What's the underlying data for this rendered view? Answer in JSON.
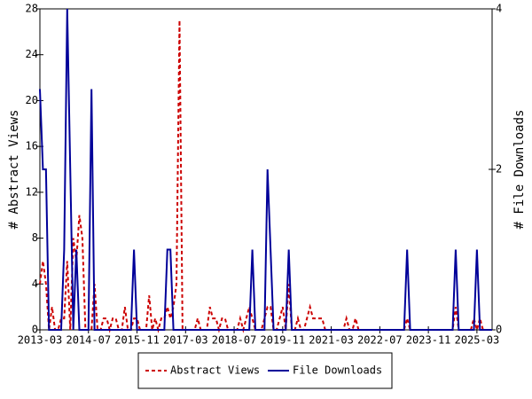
{
  "chart_data": {
    "type": "line",
    "y_label": "# Abstract Views",
    "y2_label": "# File Downloads",
    "x": [
      "2013-03",
      "2013-04",
      "2013-05",
      "2013-06",
      "2013-07",
      "2013-08",
      "2013-09",
      "2013-10",
      "2013-11",
      "2013-12",
      "2014-01",
      "2014-02",
      "2014-03",
      "2014-04",
      "2014-05",
      "2014-06",
      "2014-07",
      "2014-08",
      "2014-09",
      "2014-10",
      "2014-11",
      "2014-12",
      "2015-01",
      "2015-02",
      "2015-03",
      "2015-04",
      "2015-05",
      "2015-06",
      "2015-07",
      "2015-08",
      "2015-09",
      "2015-10",
      "2015-11",
      "2015-12",
      "2016-01",
      "2016-02",
      "2016-03",
      "2016-04",
      "2016-05",
      "2016-06",
      "2016-07",
      "2016-08",
      "2016-09",
      "2016-10",
      "2016-11",
      "2016-12",
      "2017-01",
      "2017-02",
      "2017-03",
      "2017-04",
      "2017-05",
      "2017-06",
      "2017-07",
      "2017-08",
      "2017-09",
      "2017-10",
      "2017-11",
      "2017-12",
      "2018-01",
      "2018-02",
      "2018-03",
      "2018-04",
      "2018-05",
      "2018-06",
      "2018-07",
      "2018-08",
      "2018-09",
      "2018-10",
      "2018-11",
      "2018-12",
      "2019-01",
      "2019-02",
      "2019-03",
      "2019-04",
      "2019-05",
      "2019-06",
      "2019-07",
      "2019-08",
      "2019-09",
      "2019-10",
      "2019-11",
      "2019-12",
      "2020-01",
      "2020-02",
      "2020-03",
      "2020-04",
      "2020-05",
      "2020-06",
      "2020-07",
      "2020-08",
      "2020-09",
      "2020-10",
      "2020-11",
      "2020-12",
      "2021-01",
      "2021-02",
      "2021-03",
      "2021-04",
      "2021-05",
      "2021-06",
      "2021-07",
      "2021-08",
      "2021-09",
      "2021-10",
      "2021-11",
      "2021-12",
      "2022-01",
      "2022-02",
      "2022-03",
      "2022-04",
      "2022-05",
      "2022-06",
      "2022-07",
      "2022-08",
      "2022-09",
      "2022-10",
      "2022-11",
      "2022-12",
      "2023-01",
      "2023-02",
      "2023-03",
      "2023-04",
      "2023-05",
      "2023-06",
      "2023-07",
      "2023-08",
      "2023-09",
      "2023-10",
      "2023-11",
      "2023-12",
      "2024-01",
      "2024-02",
      "2024-03",
      "2024-04",
      "2024-05",
      "2024-06",
      "2024-07",
      "2024-08",
      "2024-09",
      "2024-10",
      "2024-11",
      "2024-12",
      "2025-01",
      "2025-02",
      "2025-03",
      "2025-04",
      "2025-05",
      "2025-06",
      "2025-07",
      "2025-08"
    ],
    "xticks": [
      "2013-03",
      "2014-07",
      "2015-11",
      "2017-03",
      "2018-07",
      "2019-11",
      "2021-03",
      "2022-07",
      "2023-11",
      "2025-03"
    ],
    "ylim": [
      0,
      28
    ],
    "yticks": [
      0,
      4,
      8,
      12,
      16,
      20,
      24,
      28
    ],
    "y2lim": [
      0,
      4
    ],
    "y2ticks": [
      0,
      2,
      4
    ],
    "legend": "bottom",
    "series": [
      {
        "name": "Abstract Views",
        "color": "#cc0000",
        "dash": true,
        "values": [
          4,
          6,
          4,
          0,
          2,
          0,
          0,
          1,
          1,
          6,
          0,
          8,
          6,
          10,
          8,
          0,
          0,
          0,
          4,
          0,
          0,
          1,
          1,
          0,
          1,
          1,
          0,
          0,
          2,
          0,
          0,
          1,
          1,
          0,
          0,
          0,
          3,
          0,
          1,
          0,
          1,
          1,
          2,
          1,
          2,
          4,
          27,
          0,
          0,
          0,
          0,
          0,
          1,
          0,
          0,
          0,
          2,
          1,
          1,
          0,
          1,
          1,
          0,
          0,
          0,
          0,
          1,
          0,
          1,
          2,
          1,
          0,
          0,
          0,
          1,
          2,
          2,
          0,
          0,
          1,
          2,
          0,
          4,
          0,
          0,
          1,
          0,
          0,
          1,
          2,
          1,
          1,
          1,
          1,
          0,
          0,
          0,
          0,
          0,
          0,
          0,
          1,
          0,
          0,
          1,
          0,
          0,
          0,
          0,
          0,
          0,
          0,
          0,
          0,
          0,
          0,
          0,
          0,
          0,
          0,
          0,
          1,
          0,
          0,
          0,
          0,
          0,
          0,
          0,
          0,
          0,
          0,
          0,
          0,
          0,
          0,
          0,
          2,
          0,
          0,
          0,
          0,
          0,
          1,
          0,
          1,
          0,
          0,
          0,
          0
        ]
      },
      {
        "name": "File Downloads",
        "color": "#000099",
        "axis": "y2",
        "values": [
          3,
          2,
          2,
          0,
          0,
          0,
          0,
          0,
          1,
          4,
          2,
          0,
          1,
          0,
          0,
          0,
          0,
          3,
          0,
          0,
          0,
          0,
          0,
          0,
          0,
          0,
          0,
          0,
          0,
          0,
          0,
          1,
          0,
          0,
          0,
          0,
          0,
          0,
          0,
          0,
          0,
          0,
          1,
          1,
          0,
          0,
          0,
          0,
          0,
          0,
          0,
          0,
          0,
          0,
          0,
          0,
          0,
          0,
          0,
          0,
          0,
          0,
          0,
          0,
          0,
          0,
          0,
          0,
          0,
          0,
          1,
          0,
          0,
          0,
          0,
          2,
          1,
          0,
          0,
          0,
          0,
          0,
          1,
          0,
          0,
          0,
          0,
          0,
          0,
          0,
          0,
          0,
          0,
          0,
          0,
          0,
          0,
          0,
          0,
          0,
          0,
          0,
          0,
          0,
          0,
          0,
          0,
          0,
          0,
          0,
          0,
          0,
          0,
          0,
          0,
          0,
          0,
          0,
          0,
          0,
          0,
          1,
          0,
          0,
          0,
          0,
          0,
          0,
          0,
          0,
          0,
          0,
          0,
          0,
          0,
          0,
          0,
          1,
          0,
          0,
          0,
          0,
          0,
          0,
          1,
          0,
          0,
          0,
          0,
          0
        ]
      }
    ]
  }
}
